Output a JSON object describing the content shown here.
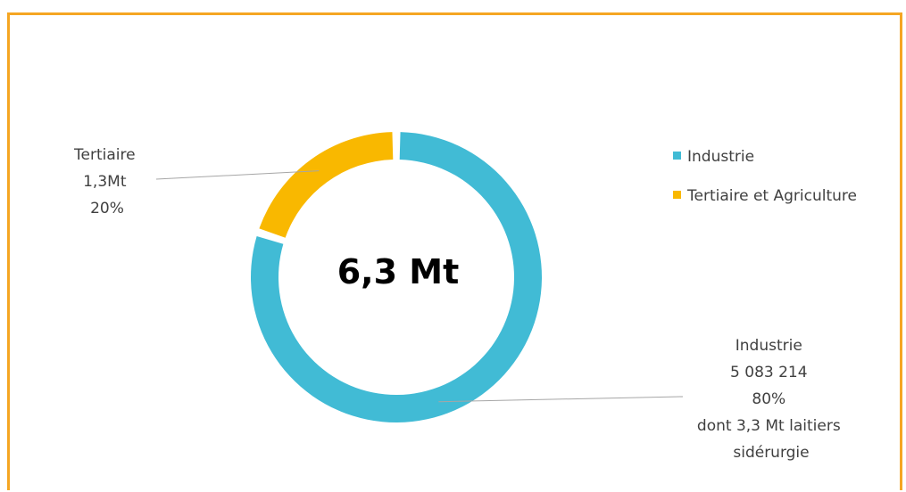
{
  "chart_data": {
    "type": "pie",
    "donut": true,
    "center_label": "6,3 Mt",
    "slices": [
      {
        "name": "Industrie",
        "share": 0.8,
        "color": "#41bbd5",
        "label_lines": [
          "Industrie",
          "5 083 214",
          "80%",
          "dont 3,3 Mt laitiers",
          "sidérurgie"
        ]
      },
      {
        "name": "Tertiaire et Agriculture",
        "share": 0.2,
        "color": "#f9b800",
        "label_lines": [
          "Tertiaire",
          "1,3Mt",
          "20%"
        ]
      }
    ],
    "legend": {
      "placement": "right",
      "entries": [
        "Industrie",
        "Tertiaire et Agriculture"
      ]
    }
  }
}
